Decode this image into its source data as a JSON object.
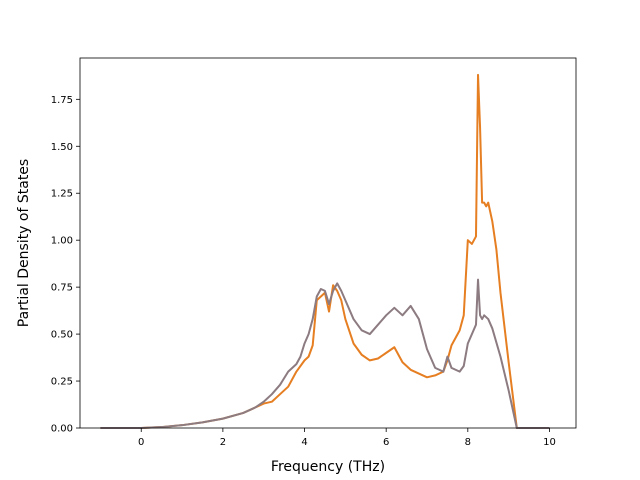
{
  "chart_data": {
    "type": "line",
    "xlabel": "Frequency (THz)",
    "ylabel": "Partial Density of States",
    "xlim": [
      -1.5,
      10.65
    ],
    "ylim": [
      0,
      1.97
    ],
    "xticks": [
      0,
      2,
      4,
      6,
      8,
      10
    ],
    "yticks": [
      0.0,
      0.25,
      0.5,
      0.75,
      1.0,
      1.25,
      1.5,
      1.75
    ],
    "grid": false,
    "legend": "none",
    "series": [
      {
        "color": "#e67e22",
        "x": [
          -1.0,
          0.0,
          0.5,
          1.0,
          1.5,
          2.0,
          2.5,
          2.8,
          3.0,
          3.2,
          3.4,
          3.6,
          3.8,
          4.0,
          4.1,
          4.2,
          4.3,
          4.4,
          4.5,
          4.6,
          4.7,
          4.8,
          4.9,
          5.0,
          5.2,
          5.4,
          5.6,
          5.8,
          6.0,
          6.2,
          6.4,
          6.6,
          6.8,
          7.0,
          7.2,
          7.4,
          7.5,
          7.6,
          7.8,
          7.9,
          8.0,
          8.1,
          8.2,
          8.25,
          8.3,
          8.35,
          8.4,
          8.45,
          8.5,
          8.6,
          8.7,
          8.8,
          9.0,
          9.2,
          9.6,
          10.0
        ],
        "y": [
          0.0,
          0.0,
          0.005,
          0.015,
          0.03,
          0.05,
          0.08,
          0.11,
          0.13,
          0.14,
          0.18,
          0.22,
          0.3,
          0.36,
          0.38,
          0.44,
          0.68,
          0.7,
          0.72,
          0.62,
          0.76,
          0.73,
          0.68,
          0.58,
          0.45,
          0.39,
          0.36,
          0.37,
          0.4,
          0.43,
          0.35,
          0.31,
          0.29,
          0.27,
          0.28,
          0.3,
          0.36,
          0.44,
          0.52,
          0.6,
          1.0,
          0.98,
          1.02,
          1.88,
          1.6,
          1.2,
          1.2,
          1.18,
          1.2,
          1.1,
          0.95,
          0.72,
          0.35,
          0.0,
          0.0,
          0.0
        ]
      },
      {
        "color": "#8c7b80",
        "x": [
          -1.0,
          0.0,
          0.5,
          1.0,
          1.5,
          2.0,
          2.5,
          2.8,
          3.0,
          3.2,
          3.4,
          3.6,
          3.8,
          3.9,
          4.0,
          4.1,
          4.2,
          4.3,
          4.4,
          4.5,
          4.6,
          4.7,
          4.8,
          4.9,
          5.0,
          5.2,
          5.4,
          5.6,
          5.8,
          6.0,
          6.2,
          6.4,
          6.6,
          6.8,
          7.0,
          7.2,
          7.4,
          7.5,
          7.6,
          7.8,
          7.9,
          8.0,
          8.1,
          8.2,
          8.25,
          8.3,
          8.35,
          8.4,
          8.5,
          8.6,
          8.8,
          9.0,
          9.2,
          9.6,
          10.0
        ],
        "y": [
          0.0,
          0.0,
          0.005,
          0.015,
          0.03,
          0.05,
          0.08,
          0.11,
          0.14,
          0.18,
          0.23,
          0.3,
          0.34,
          0.38,
          0.45,
          0.5,
          0.58,
          0.7,
          0.74,
          0.73,
          0.66,
          0.73,
          0.77,
          0.73,
          0.68,
          0.58,
          0.52,
          0.5,
          0.55,
          0.6,
          0.64,
          0.6,
          0.65,
          0.58,
          0.42,
          0.32,
          0.3,
          0.38,
          0.32,
          0.3,
          0.33,
          0.45,
          0.5,
          0.55,
          0.79,
          0.6,
          0.58,
          0.6,
          0.58,
          0.53,
          0.38,
          0.2,
          0.0,
          0.0,
          0.0
        ]
      }
    ]
  }
}
